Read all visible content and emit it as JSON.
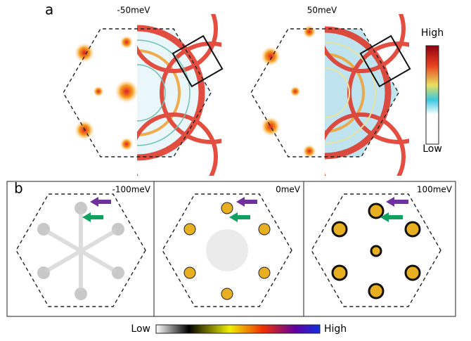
{
  "panel_a": {
    "label": "a",
    "energies": [
      "-50meV",
      "50meV"
    ],
    "colorbar": {
      "high": "High",
      "low": "Low"
    }
  },
  "panel_b": {
    "label": "b",
    "energies": [
      "-100meV",
      "0meV",
      "100meV"
    ],
    "colorbar": {
      "low": "Low",
      "high": "High"
    }
  }
}
